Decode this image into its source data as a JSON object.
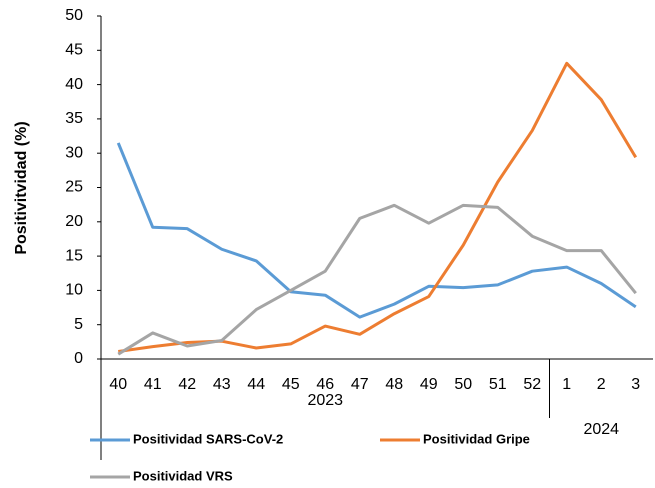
{
  "chart_data": {
    "type": "line",
    "y_label": "Positivitvidad (%)",
    "categories": [
      "40",
      "41",
      "42",
      "43",
      "44",
      "45",
      "46",
      "47",
      "48",
      "49",
      "50",
      "51",
      "52",
      "1",
      "2",
      "3"
    ],
    "groups": [
      {
        "label": "2023",
        "count": 13
      },
      {
        "label": "2024",
        "count": 3
      }
    ],
    "series": [
      {
        "name": "Positividad SARS-CoV-2",
        "color": "#5b9bd5",
        "values": [
          31.5,
          19.2,
          19.0,
          16.0,
          14.3,
          9.8,
          9.3,
          6.1,
          8.0,
          10.6,
          10.4,
          10.8,
          12.8,
          13.4,
          11.0,
          7.6
        ]
      },
      {
        "name": "Positividad Gripe",
        "color": "#ed7d31",
        "values": [
          1.1,
          1.8,
          2.4,
          2.6,
          1.6,
          2.2,
          4.8,
          3.6,
          6.6,
          9.1,
          16.6,
          25.8,
          33.3,
          43.1,
          37.8,
          29.4
        ]
      },
      {
        "name": "Positividad VRS",
        "color": "#a5a5a5",
        "values": [
          0.7,
          3.8,
          1.9,
          2.7,
          7.2,
          10.0,
          12.8,
          20.5,
          22.4,
          19.8,
          22.4,
          22.1,
          17.9,
          15.8,
          15.8,
          9.6
        ]
      }
    ],
    "ylim": [
      0,
      50
    ],
    "yticks": [
      0,
      5,
      10,
      15,
      20,
      25,
      30,
      35,
      40,
      45,
      50
    ],
    "grid": false
  }
}
